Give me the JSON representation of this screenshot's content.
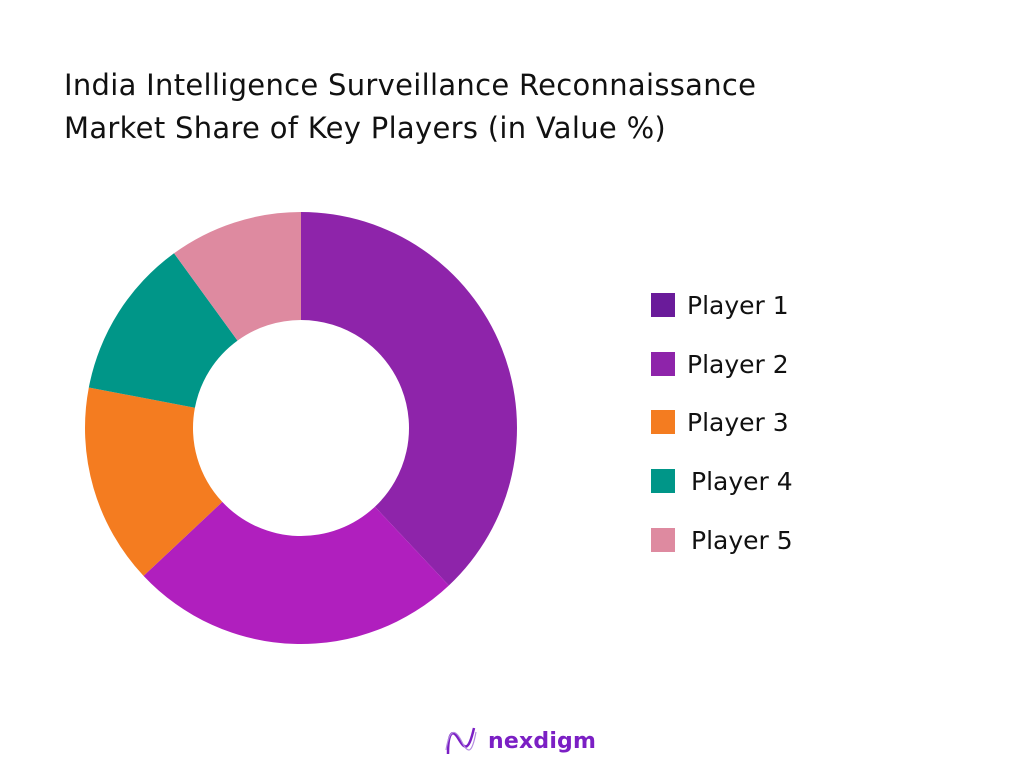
{
  "chart_data": {
    "type": "pie",
    "variant": "donut",
    "title": [
      "India Intelligence Surveillance Reconnaissance",
      "Market Share of Key Players (in Value %)"
    ],
    "categories": [
      "Player 1",
      "Player 2",
      "Player 3",
      "Player 4",
      "Player 5"
    ],
    "values": [
      38,
      25,
      15,
      12,
      10
    ],
    "unit": "%",
    "slice_colors": [
      "#8E24AA",
      "#B01FBE",
      "#F47C20",
      "#009688",
      "#DE8AA0"
    ],
    "legend_colors": [
      "#6A1B9A",
      "#8E24AA",
      "#F47C20",
      "#009688",
      "#DE8AA0"
    ],
    "legend_position": "right",
    "start_angle": "top, clockwise"
  },
  "branding": {
    "logo_text": "nexdigm",
    "logo_color": "#7B1FC4"
  }
}
